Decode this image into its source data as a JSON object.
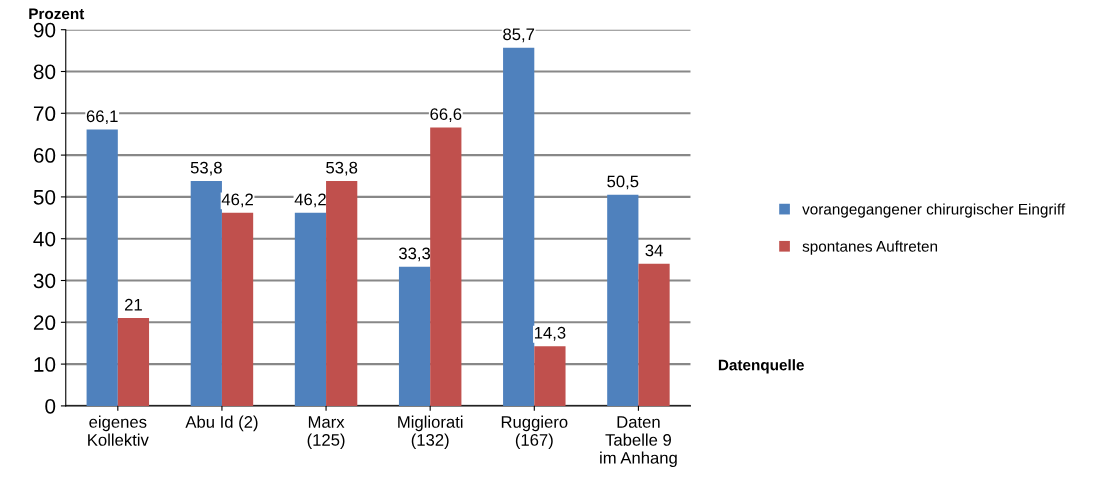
{
  "chart_data": {
    "type": "bar",
    "ylabel": "Prozent",
    "xlabel": "Datenquelle",
    "categories": [
      "eigenes\nKollektiv",
      "Abu Id (2)",
      "Marx\n(125)",
      "Migliorati\n(132)",
      "Ruggiero\n(167)",
      "Daten\nTabelle 9\nim Anhang"
    ],
    "series": [
      {
        "name": "vorangegangener chirurgischer Eingriff",
        "color": "#4f81bd",
        "values": [
          66.1,
          53.8,
          46.2,
          33.3,
          85.7,
          50.5
        ],
        "value_labels": [
          "66,1",
          "53,8",
          "46,2",
          "33,3",
          "85,7",
          "50,5"
        ]
      },
      {
        "name": "spontanes Auftreten",
        "color": "#c0504d",
        "values": [
          21,
          46.2,
          53.8,
          66.6,
          14.3,
          34
        ],
        "value_labels": [
          "21",
          "46,2",
          "53,8",
          "66,6",
          "14,3",
          "34"
        ]
      }
    ],
    "ylim": [
      0,
      90
    ],
    "yticks": [
      0,
      10,
      20,
      30,
      40,
      50,
      60,
      70,
      80,
      90
    ],
    "grid": "y",
    "legend": "right"
  }
}
